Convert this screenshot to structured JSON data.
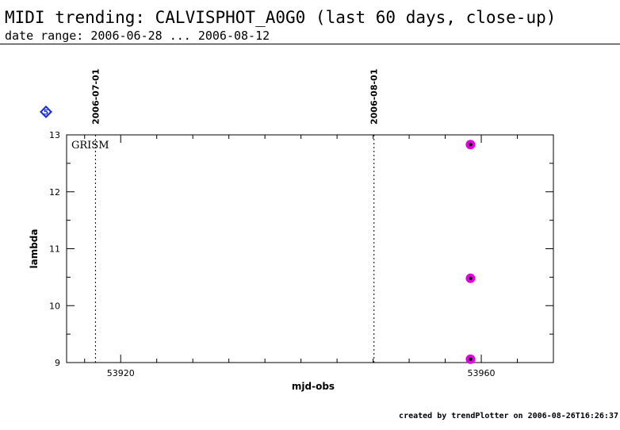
{
  "header": {
    "title": "MIDI trending: CALVISPHOT_A0G0 (last 60 days, close-up)",
    "subtitle": "date range: 2006-06-28 ... 2006-08-12"
  },
  "badge": {
    "text": "5",
    "icon": "diamond-badge-icon",
    "color": "#1a2fd6"
  },
  "footer": {
    "text": "created by trendPlotter on 2006-08-26T16:26:37"
  },
  "chart_data": {
    "type": "scatter",
    "panel_label": "GRISM",
    "xlabel": "mjd-obs",
    "ylabel": "lambda",
    "xlim": [
      53914,
      53968
    ],
    "ylim": [
      9,
      13
    ],
    "x_ticks": [
      53920,
      53960
    ],
    "y_ticks": [
      9,
      10,
      11,
      12,
      13
    ],
    "x_minor_step": 4,
    "y_minor_step": 0.5,
    "date_markers": [
      {
        "label": "2006-07-01",
        "x": 53917.2
      },
      {
        "label": "2006-08-01",
        "x": 53948.1
      }
    ],
    "points": [
      {
        "x": 53958.8,
        "y": 12.83
      },
      {
        "x": 53958.8,
        "y": 10.48
      },
      {
        "x": 53958.8,
        "y": 9.06
      }
    ],
    "marker_color": "#e000e0",
    "marker_core_color": "#000000",
    "grid": false
  }
}
